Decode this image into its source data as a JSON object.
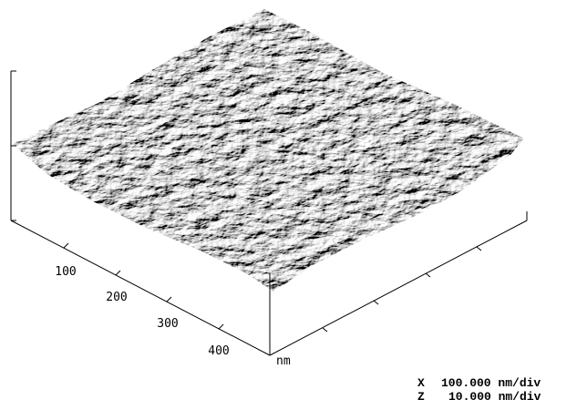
{
  "axis": {
    "ticks": [
      "100",
      "200",
      "300",
      "400"
    ],
    "unit": "nm"
  },
  "scale": [
    {
      "axis": "X",
      "value": "100.000 nm/div"
    },
    {
      "axis": "Z",
      "value": "10.000 nm/div"
    }
  ]
}
